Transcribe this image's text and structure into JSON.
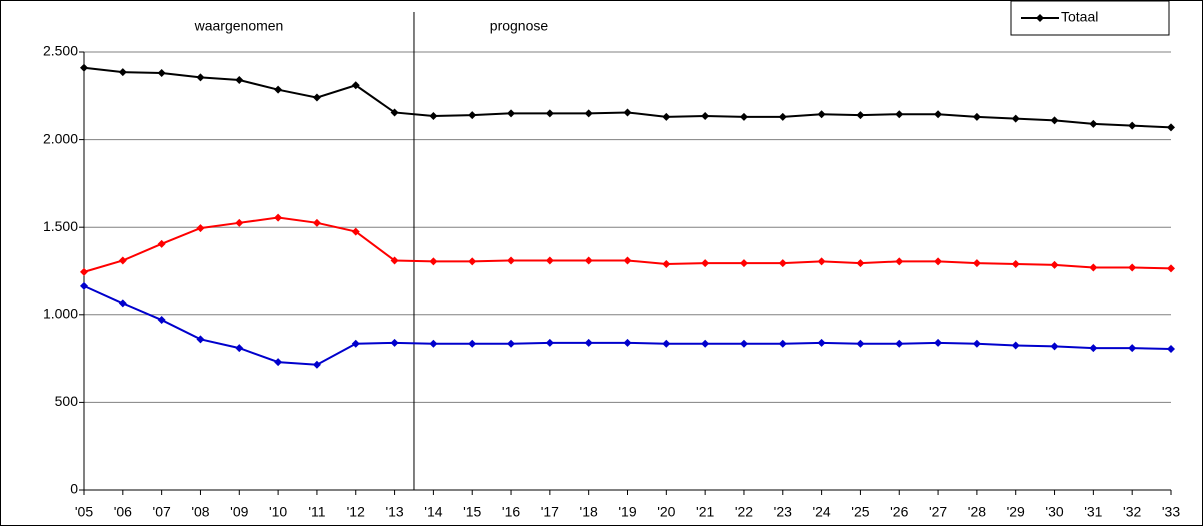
{
  "chart_data": {
    "type": "line",
    "annotations": [
      "waargenomen",
      "prognose"
    ],
    "categories": [
      "'05",
      "'06",
      "'07",
      "'08",
      "'09",
      "'10",
      "'11",
      "'12",
      "'13",
      "'14",
      "'15",
      "'16",
      "'17",
      "'18",
      "'19",
      "'20",
      "'21",
      "'22",
      "'23",
      "'24",
      "'25",
      "'26",
      "'27",
      "'28",
      "'29",
      "'30",
      "'31",
      "'32",
      "'33"
    ],
    "series": [
      {
        "name": "Totaal",
        "color": "#000000",
        "values": [
          2410,
          2385,
          2380,
          2355,
          2340,
          2285,
          2240,
          2310,
          2155,
          2135,
          2140,
          2150,
          2150,
          2150,
          2155,
          2130,
          2135,
          2130,
          2130,
          2145,
          2140,
          2145,
          2145,
          2130,
          2120,
          2110,
          2090,
          2080,
          2070
        ]
      },
      {
        "color": "#ff0000",
        "values": [
          1245,
          1310,
          1405,
          1495,
          1525,
          1555,
          1525,
          1475,
          1310,
          1305,
          1305,
          1310,
          1310,
          1310,
          1310,
          1290,
          1295,
          1295,
          1295,
          1305,
          1295,
          1305,
          1305,
          1295,
          1290,
          1285,
          1270,
          1270,
          1265
        ]
      },
      {
        "color": "#0000cc",
        "values": [
          1165,
          1065,
          970,
          860,
          810,
          730,
          715,
          835,
          840,
          835,
          835,
          835,
          840,
          840,
          840,
          835,
          835,
          835,
          835,
          840,
          835,
          835,
          840,
          835,
          825,
          820,
          810,
          810,
          805
        ]
      }
    ],
    "ylim": [
      0,
      2500
    ],
    "yticks": [
      0,
      500,
      {
        "value": 1000,
        "label": "1.000"
      },
      {
        "value": 1500,
        "label": "1.500"
      },
      {
        "value": 2000,
        "label": "2.000"
      },
      {
        "value": 2500,
        "label": "2.500"
      }
    ],
    "grid": true,
    "legend": "top-right"
  }
}
